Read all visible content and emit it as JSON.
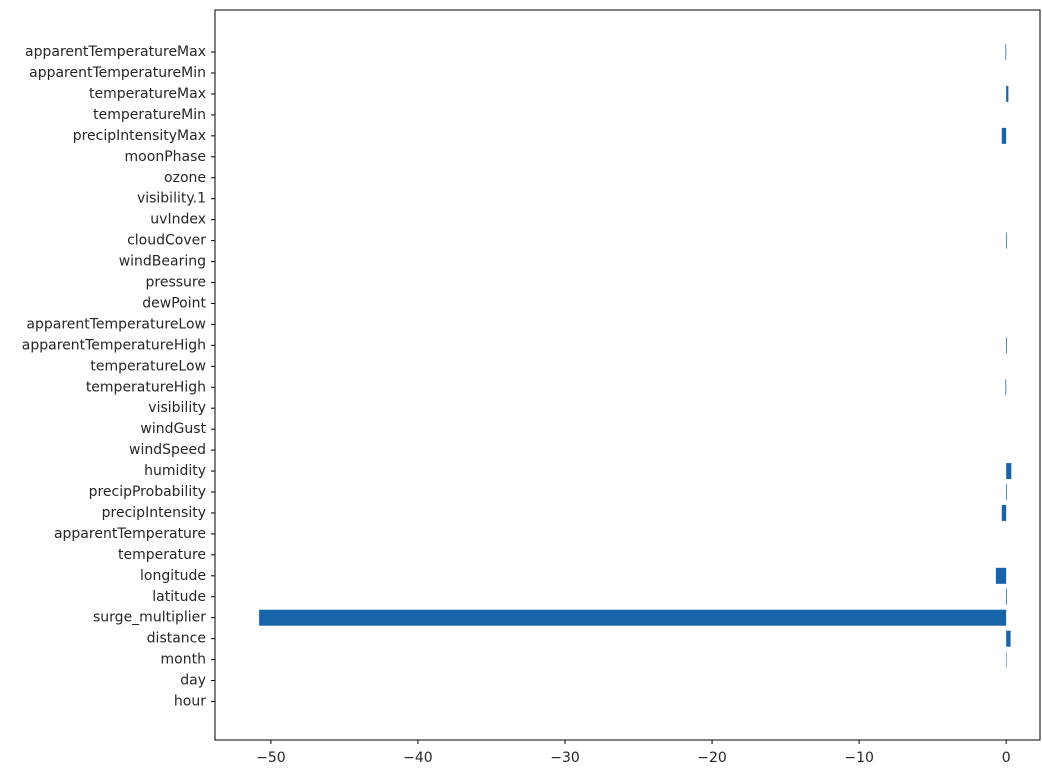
{
  "chart_data": {
    "type": "bar",
    "orientation": "horizontal",
    "title": "",
    "xlabel": "",
    "ylabel": "",
    "categories": [
      "hour",
      "day",
      "month",
      "distance",
      "surge_multiplier",
      "latitude",
      "longitude",
      "temperature",
      "apparentTemperature",
      "precipIntensity",
      "precipProbability",
      "humidity",
      "windSpeed",
      "windGust",
      "visibility",
      "temperatureHigh",
      "temperatureLow",
      "apparentTemperatureHigh",
      "apparentTemperatureLow",
      "dewPoint",
      "pressure",
      "windBearing",
      "cloudCover",
      "uvIndex",
      "visibility.1",
      "ozone",
      "moonPhase",
      "precipIntensityMax",
      "temperatureMin",
      "temperatureMax",
      "apparentTemperatureMin",
      "apparentTemperatureMax"
    ],
    "values": [
      0.0,
      0.0,
      0.03,
      0.3,
      -50.8,
      0.05,
      -0.7,
      0.0,
      0.0,
      -0.3,
      0.05,
      0.35,
      0.0,
      0.0,
      0.0,
      -0.05,
      0.0,
      0.05,
      0.0,
      0.0,
      0.0,
      0.0,
      0.05,
      0.0,
      0.0,
      0.0,
      0.0,
      -0.3,
      0.0,
      0.15,
      0.0,
      -0.05
    ],
    "xlim": [
      -53.8,
      2.3
    ],
    "xticks": [
      -50,
      -40,
      -30,
      -20,
      -10,
      0
    ],
    "xtick_labels": [
      "−50",
      "−40",
      "−30",
      "−20",
      "−10",
      "0"
    ],
    "bar_color": "#1764ab",
    "grid": false,
    "legend": "none"
  }
}
